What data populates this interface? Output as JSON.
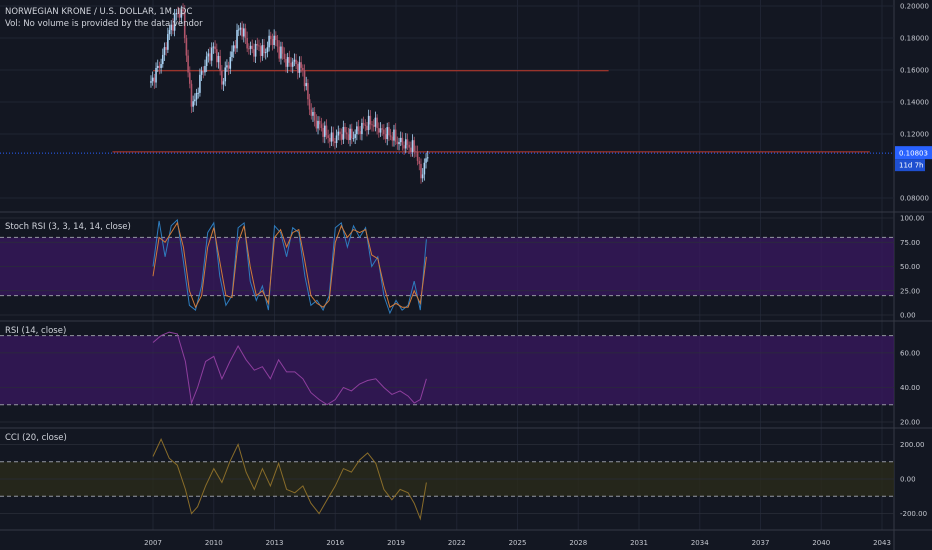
{
  "legend": {
    "symbol": "NORWEGIAN KRONE / U.S. DOLLAR, 1M, IDC",
    "volume_note": "Vol: No volume is provided by the data vendor",
    "stoch": "Stoch RSI (3, 3, 14, 14, close)",
    "rsi": "RSI (14, close)",
    "cci": "CCI (20, close)"
  },
  "price_tag": {
    "value": "0.10803",
    "countdown": "11d 7h"
  },
  "colors": {
    "background": "#131722",
    "grid": "#1f2433",
    "up": "#a9d3f5",
    "down": "#b0556a",
    "hline": "#c0392b",
    "stoch_k": "#2e7dbf",
    "stoch_d": "#d07a3a",
    "band": "#5a1a7a",
    "rsi": "#8e3f9e",
    "cci": "#8a6d2a",
    "tag": "#2962ff"
  },
  "chart_data": [
    {
      "type": "candlestick",
      "title": "NORWEGIAN KRONE / U.S. DOLLAR, 1M, IDC",
      "x_ticks": [
        "2007",
        "2010",
        "2013",
        "2016",
        "2019",
        "2022",
        "2025",
        "2028",
        "2031",
        "2034",
        "2037",
        "2040",
        "2043"
      ],
      "y_ticks": [
        "0.20000",
        "0.18000",
        "0.16000",
        "0.14000",
        "0.12000",
        "0.10803",
        "0.08000"
      ],
      "ylim": [
        0.075,
        0.2
      ],
      "xlim": [
        2005,
        2044
      ],
      "horizontal_lines": [
        {
          "y": 0.1595,
          "x_start": 2007.0,
          "x_end": 2029.5
        },
        {
          "y": 0.1088,
          "x_start": 2005.0,
          "x_end": 2042.4
        }
      ],
      "close_series": {
        "x": [
          2006.9,
          2007.2,
          2007.5,
          2007.7,
          2008.0,
          2008.2,
          2008.5,
          2008.7,
          2008.9,
          2009.0,
          2009.2,
          2009.4,
          2009.7,
          2010.0,
          2010.2,
          2010.4,
          2010.6,
          2010.9,
          2011.1,
          2011.3,
          2011.5,
          2011.7,
          2011.9,
          2012.2,
          2012.5,
          2012.7,
          2013.0,
          2013.2,
          2013.4,
          2013.6,
          2013.9,
          2014.2,
          2014.4,
          2014.6,
          2014.8,
          2015.0,
          2015.3,
          2015.6,
          2015.9,
          2016.2,
          2016.5,
          2016.8,
          2017.1,
          2017.4,
          2017.7,
          2018.0,
          2018.3,
          2018.6,
          2018.9,
          2019.1,
          2019.4,
          2019.7,
          2020.0,
          2020.2,
          2020.4,
          2020.6
        ],
        "y": [
          0.152,
          0.16,
          0.168,
          0.18,
          0.19,
          0.196,
          0.195,
          0.16,
          0.142,
          0.137,
          0.148,
          0.158,
          0.168,
          0.174,
          0.168,
          0.152,
          0.16,
          0.17,
          0.18,
          0.187,
          0.182,
          0.174,
          0.172,
          0.175,
          0.17,
          0.178,
          0.18,
          0.172,
          0.17,
          0.164,
          0.165,
          0.162,
          0.16,
          0.145,
          0.133,
          0.128,
          0.124,
          0.119,
          0.116,
          0.12,
          0.121,
          0.118,
          0.122,
          0.125,
          0.127,
          0.126,
          0.121,
          0.12,
          0.118,
          0.115,
          0.114,
          0.112,
          0.11,
          0.093,
          0.1,
          0.108
        ]
      }
    },
    {
      "type": "line",
      "title": "Stoch RSI (3, 3, 14, 14, close)",
      "y_ticks": [
        "100.00",
        "75.00",
        "50.00",
        "25.00",
        "0.00"
      ],
      "ylim": [
        0,
        100
      ],
      "band": [
        20,
        80
      ],
      "series": [
        {
          "name": "K",
          "x": [
            2007.0,
            2007.3,
            2007.6,
            2007.9,
            2008.2,
            2008.5,
            2008.8,
            2009.1,
            2009.4,
            2009.7,
            2010.0,
            2010.3,
            2010.6,
            2010.9,
            2011.2,
            2011.5,
            2011.8,
            2012.1,
            2012.4,
            2012.7,
            2013.0,
            2013.3,
            2013.6,
            2013.9,
            2014.2,
            2014.5,
            2014.8,
            2015.1,
            2015.4,
            2015.7,
            2016.0,
            2016.3,
            2016.6,
            2016.9,
            2017.2,
            2017.5,
            2017.8,
            2018.1,
            2018.4,
            2018.7,
            2019.0,
            2019.3,
            2019.6,
            2019.9,
            2020.2,
            2020.5
          ],
          "y": [
            50,
            97,
            60,
            92,
            98,
            55,
            10,
            5,
            30,
            85,
            95,
            40,
            10,
            20,
            90,
            95,
            35,
            15,
            30,
            5,
            92,
            85,
            60,
            90,
            85,
            40,
            10,
            15,
            5,
            20,
            90,
            95,
            70,
            92,
            80,
            90,
            50,
            60,
            20,
            2,
            15,
            5,
            10,
            35,
            5,
            78
          ]
        },
        {
          "name": "D",
          "x": [
            2007.0,
            2007.3,
            2007.6,
            2007.9,
            2008.2,
            2008.5,
            2008.8,
            2009.1,
            2009.4,
            2009.7,
            2010.0,
            2010.3,
            2010.6,
            2010.9,
            2011.2,
            2011.5,
            2011.8,
            2012.1,
            2012.4,
            2012.7,
            2013.0,
            2013.3,
            2013.6,
            2013.9,
            2014.2,
            2014.5,
            2014.8,
            2015.1,
            2015.4,
            2015.7,
            2016.0,
            2016.3,
            2016.6,
            2016.9,
            2017.2,
            2017.5,
            2017.8,
            2018.1,
            2018.4,
            2018.7,
            2019.0,
            2019.3,
            2019.6,
            2019.9,
            2020.2,
            2020.5
          ],
          "y": [
            40,
            80,
            75,
            85,
            95,
            70,
            25,
            8,
            20,
            70,
            90,
            55,
            20,
            18,
            75,
            92,
            50,
            20,
            25,
            12,
            80,
            88,
            70,
            85,
            88,
            55,
            20,
            12,
            8,
            15,
            75,
            92,
            80,
            88,
            85,
            88,
            62,
            58,
            30,
            8,
            12,
            8,
            8,
            25,
            12,
            60
          ]
        }
      ]
    },
    {
      "type": "line",
      "title": "RSI (14, close)",
      "y_ticks": [
        "60.00",
        "40.00",
        "20.00"
      ],
      "ylim": [
        20,
        75
      ],
      "band": [
        30,
        70
      ],
      "series": [
        {
          "name": "RSI",
          "x": [
            2007.0,
            2007.4,
            2007.8,
            2008.2,
            2008.6,
            2008.9,
            2009.2,
            2009.6,
            2010.0,
            2010.4,
            2010.8,
            2011.2,
            2011.6,
            2012.0,
            2012.4,
            2012.8,
            2013.2,
            2013.6,
            2014.0,
            2014.4,
            2014.8,
            2015.2,
            2015.6,
            2016.0,
            2016.4,
            2016.8,
            2017.2,
            2017.6,
            2018.0,
            2018.4,
            2018.8,
            2019.2,
            2019.6,
            2019.9,
            2020.2,
            2020.5
          ],
          "y": [
            66,
            70,
            72,
            71,
            55,
            31,
            40,
            55,
            58,
            45,
            55,
            64,
            56,
            50,
            52,
            45,
            56,
            49,
            49,
            45,
            37,
            33,
            30,
            33,
            40,
            38,
            42,
            44,
            45,
            40,
            36,
            38,
            35,
            31,
            33,
            45
          ]
        }
      ]
    },
    {
      "type": "line",
      "title": "CCI (20, close)",
      "y_ticks": [
        "200.00",
        "0.00",
        "-200.00"
      ],
      "ylim": [
        -260,
        260
      ],
      "band": [
        -100,
        100
      ],
      "series": [
        {
          "name": "CCI",
          "x": [
            2007.0,
            2007.4,
            2007.8,
            2008.2,
            2008.6,
            2008.9,
            2009.2,
            2009.6,
            2010.0,
            2010.4,
            2010.8,
            2011.2,
            2011.6,
            2012.0,
            2012.4,
            2012.8,
            2013.2,
            2013.6,
            2014.0,
            2014.4,
            2014.8,
            2015.2,
            2015.6,
            2016.0,
            2016.4,
            2016.8,
            2017.2,
            2017.6,
            2018.0,
            2018.4,
            2018.8,
            2019.2,
            2019.6,
            2019.9,
            2020.2,
            2020.5
          ],
          "y": [
            130,
            230,
            120,
            80,
            -60,
            -200,
            -160,
            -40,
            60,
            -20,
            100,
            200,
            40,
            -60,
            60,
            -40,
            90,
            -60,
            -80,
            -40,
            -140,
            -200,
            -120,
            -40,
            60,
            40,
            110,
            150,
            90,
            -60,
            -120,
            -60,
            -80,
            -140,
            -230,
            -20
          ]
        }
      ]
    }
  ]
}
